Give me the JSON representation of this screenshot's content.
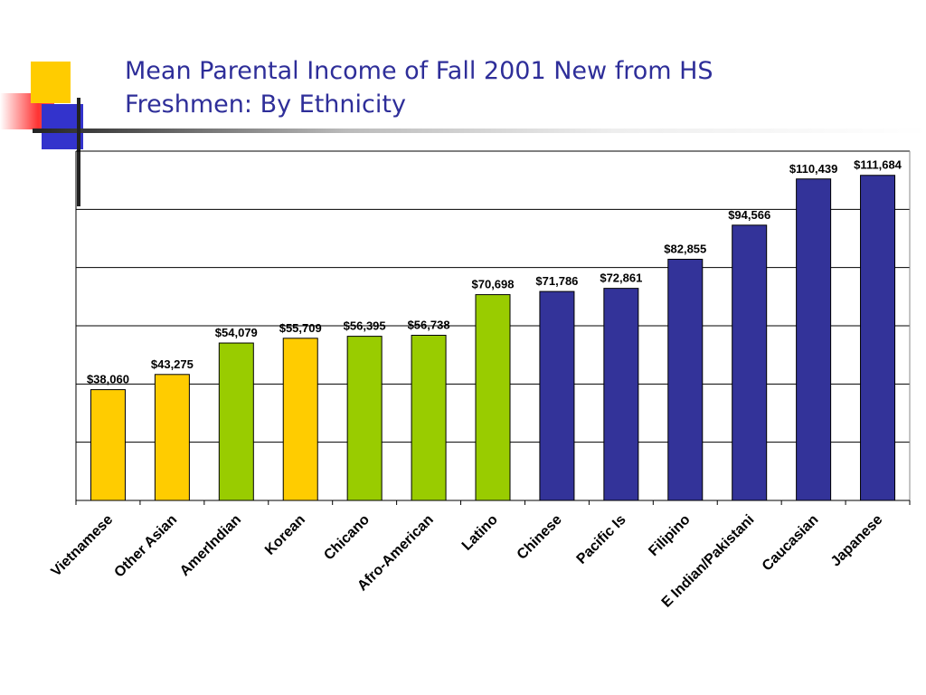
{
  "slide": {
    "title_line1": "Mean Parental Income of Fall 2001 New from HS",
    "title_line2": "Freshmen: By Ethnicity"
  },
  "chart_data": {
    "type": "bar",
    "categories": [
      "Vietnamese",
      "Other Asian",
      "AmerIndian",
      "Korean",
      "Chicano",
      "Afro-American",
      "Latino",
      "Chinese",
      "Pacific Is",
      "Filipino",
      "E Indian/Pakistani",
      "Caucasian",
      "Japanese"
    ],
    "values": [
      38060,
      43275,
      54079,
      55709,
      56395,
      56738,
      70698,
      71786,
      72861,
      82855,
      94566,
      110439,
      111684
    ],
    "data_labels": [
      "$38,060",
      "$43,275",
      "$54,079",
      "$55,709",
      "$56,395",
      "$56,738",
      "$70,698",
      "$71,786",
      "$72,861",
      "$82,855",
      "$94,566",
      "$110,439",
      "$111,684"
    ],
    "bar_colors": [
      "#ffcc00",
      "#ffcc00",
      "#99cc00",
      "#ffcc00",
      "#99cc00",
      "#99cc00",
      "#99cc00",
      "#333399",
      "#333399",
      "#333399",
      "#333399",
      "#333399",
      "#333399"
    ],
    "ylim": [
      0,
      120000
    ],
    "gridline_step": 20000,
    "y_tick_labels_shown": false,
    "grid": true,
    "title": "",
    "xlabel": "",
    "ylabel": ""
  }
}
